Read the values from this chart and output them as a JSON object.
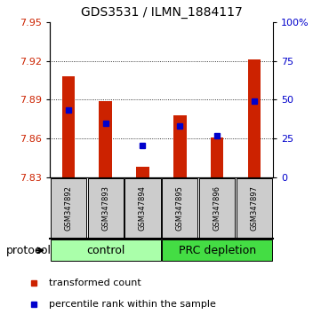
{
  "title": "GDS3531 / ILMN_1884117",
  "samples": [
    "GSM347892",
    "GSM347893",
    "GSM347894",
    "GSM347895",
    "GSM347896",
    "GSM347897"
  ],
  "groups": [
    "control",
    "control",
    "control",
    "PRC depletion",
    "PRC depletion",
    "PRC depletion"
  ],
  "red_values": [
    7.908,
    7.889,
    7.838,
    7.878,
    7.861,
    7.921
  ],
  "blue_values": [
    7.882,
    7.872,
    7.855,
    7.87,
    7.862,
    7.889
  ],
  "ymin": 7.83,
  "ymax": 7.95,
  "yticks": [
    7.83,
    7.86,
    7.89,
    7.92,
    7.95
  ],
  "right_yticks": [
    0,
    25,
    50,
    75,
    100
  ],
  "red_color": "#CC2200",
  "blue_color": "#0000CC",
  "bar_width": 0.35,
  "control_bg": "#AAFFAA",
  "prc_bg": "#44DD44",
  "sample_bg": "#CCCCCC",
  "legend_red_label": "transformed count",
  "legend_blue_label": "percentile rank within the sample",
  "protocol_label": "protocol",
  "group_control": "control",
  "group_prc": "PRC depletion",
  "title_fontsize": 10,
  "tick_fontsize": 8,
  "sample_fontsize": 6,
  "legend_fontsize": 8,
  "group_fontsize": 9
}
